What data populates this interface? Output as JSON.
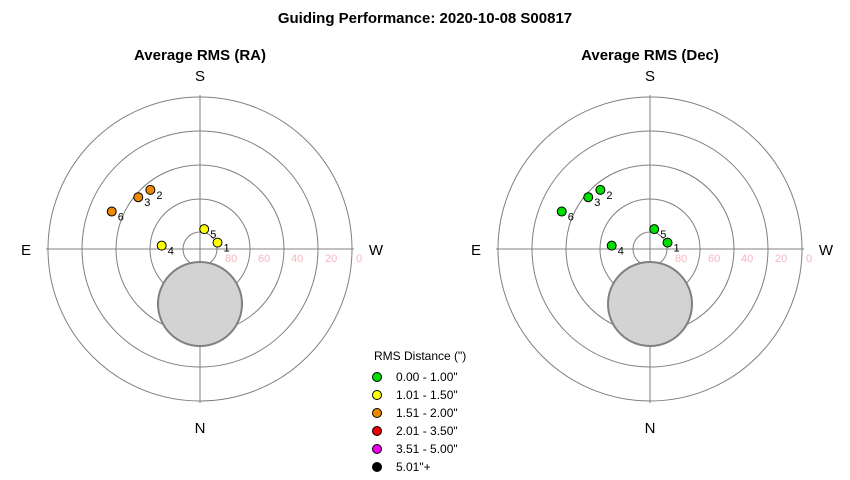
{
  "title": "Guiding Performance: 2020-10-08 S00817",
  "chart_data": [
    {
      "type": "scatter",
      "title": "Average RMS (RA)",
      "directions": {
        "top": "S",
        "bottom": "N",
        "left": "E",
        "right": "W"
      },
      "ring_labels": [
        "80",
        "60",
        "40",
        "20",
        "0"
      ],
      "points": [
        {
          "label": "1",
          "az": 70,
          "alt": 79,
          "color": "#ffff00"
        },
        {
          "label": "2",
          "az": -40,
          "alt": 44,
          "color": "#ee8800"
        },
        {
          "label": "3",
          "az": -50,
          "alt": 42,
          "color": "#ee8800"
        },
        {
          "label": "4",
          "az": -85,
          "alt": 67,
          "color": "#ffff00"
        },
        {
          "label": "5",
          "az": 12,
          "alt": 78,
          "color": "#ffff00"
        },
        {
          "label": "6",
          "az": -67,
          "alt": 33,
          "color": "#ee8800"
        }
      ]
    },
    {
      "type": "scatter",
      "title": "Average RMS (Dec)",
      "directions": {
        "top": "S",
        "bottom": "N",
        "left": "E",
        "right": "W"
      },
      "ring_labels": [
        "80",
        "60",
        "40",
        "20",
        "0"
      ],
      "points": [
        {
          "label": "1",
          "az": 70,
          "alt": 79,
          "color": "#00dd00"
        },
        {
          "label": "2",
          "az": -40,
          "alt": 44,
          "color": "#00dd00"
        },
        {
          "label": "3",
          "az": -50,
          "alt": 42,
          "color": "#00dd00"
        },
        {
          "label": "4",
          "az": -85,
          "alt": 67,
          "color": "#00dd00"
        },
        {
          "label": "5",
          "az": 12,
          "alt": 78,
          "color": "#00dd00"
        },
        {
          "label": "6",
          "az": -67,
          "alt": 33,
          "color": "#00dd00"
        }
      ]
    }
  ],
  "legend": {
    "title": "RMS Distance (\")",
    "items": [
      {
        "label": "0.00 - 1.00\"",
        "color": "#00dd00"
      },
      {
        "label": "1.01 - 1.50\"",
        "color": "#ffff00"
      },
      {
        "label": "1.51 - 2.00\"",
        "color": "#ee8800"
      },
      {
        "label": "2.01 - 3.50\"",
        "color": "#ee0000"
      },
      {
        "label": "3.51 - 5.00\"",
        "color": "#ee00ee"
      },
      {
        "label": "5.01\"+",
        "color": "#000000"
      }
    ]
  },
  "colors": {
    "ring": "#808080",
    "pole_fill": "#d3d3d3",
    "pole_stroke": "#808080",
    "ring_label": "#f4b6c2"
  }
}
